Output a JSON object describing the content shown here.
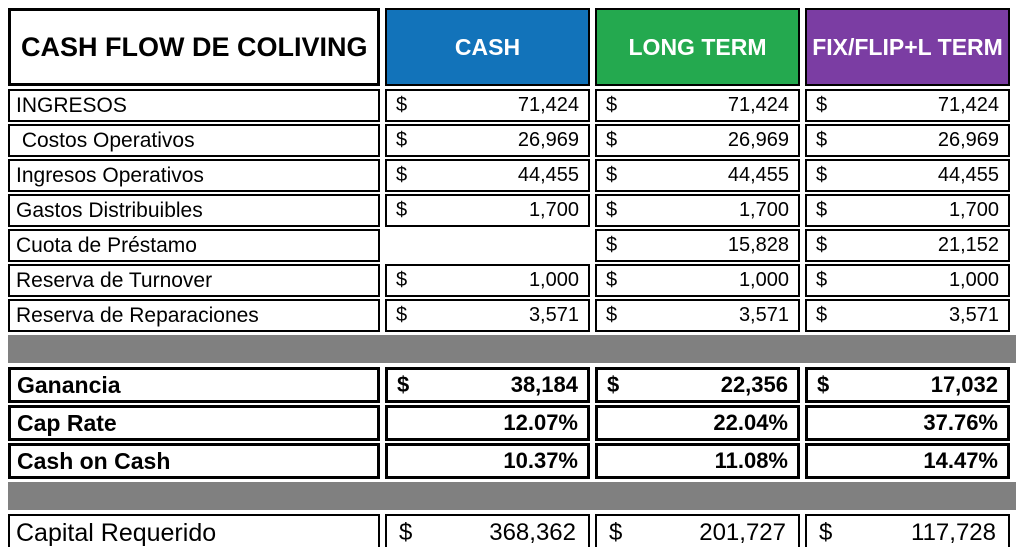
{
  "chart_data": {
    "type": "table",
    "title": "CASH FLOW DE COLIVING",
    "currency_symbol": "$",
    "columns": [
      {
        "label": "CASH",
        "color": "#1273BA"
      },
      {
        "label": "LONG TERM",
        "color": "#24A94F"
      },
      {
        "label": "FIX/FLIP+L TERM",
        "color": "#7B3DA3"
      }
    ],
    "rows": [
      {
        "label": "INGRESOS",
        "unit": "currency",
        "values": [
          "71,424",
          "71,424",
          "71,424"
        ]
      },
      {
        "label": " Costos Operativos",
        "unit": "currency",
        "values": [
          "26,969",
          "26,969",
          "26,969"
        ]
      },
      {
        "label": "Ingresos Operativos",
        "unit": "currency",
        "values": [
          "44,455",
          "44,455",
          "44,455"
        ]
      },
      {
        "label": "Gastos Distribuibles",
        "unit": "currency",
        "values": [
          "1,700",
          "1,700",
          "1,700"
        ]
      },
      {
        "label": "Cuota de Préstamo",
        "unit": "currency",
        "values": [
          "",
          "15,828",
          "21,152"
        ]
      },
      {
        "label": "Reserva de Turnover",
        "unit": "currency",
        "values": [
          "1,000",
          "1,000",
          "1,000"
        ]
      },
      {
        "label": "Reserva de Reparaciones",
        "unit": "currency",
        "values": [
          "3,571",
          "3,571",
          "3,571"
        ]
      },
      {
        "label": "Ganancia",
        "unit": "currency",
        "values": [
          "38,184",
          "22,356",
          "17,032"
        ]
      },
      {
        "label": "Cap Rate",
        "unit": "percent",
        "values": [
          "12.07%",
          "22.04%",
          "37.76%"
        ]
      },
      {
        "label": "Cash on Cash",
        "unit": "percent",
        "values": [
          "10.37%",
          "11.08%",
          "14.47%"
        ]
      },
      {
        "label": "Capital Requerido",
        "unit": "currency",
        "values": [
          "368,362",
          "201,727",
          "117,728"
        ]
      }
    ],
    "layout": {
      "separator_color": "#808080",
      "border_color": "#000000",
      "header_text_color": "#FFFFFF",
      "grid": "on",
      "legend": "none"
    }
  }
}
